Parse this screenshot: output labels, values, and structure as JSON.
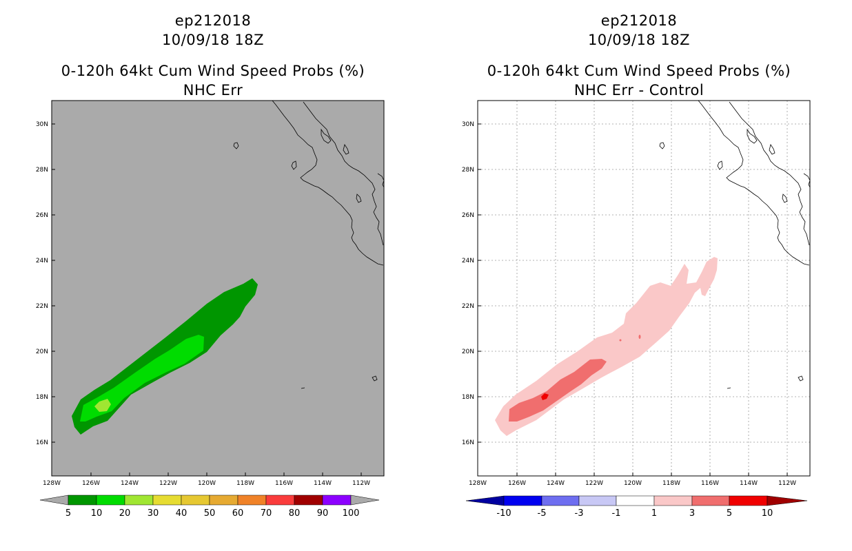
{
  "left_panel": {
    "title_storm": "ep212018",
    "title_time": "10/09/18 18Z",
    "title_product": "0-120h 64kt Cum Wind Speed Probs (%)",
    "title_sub": "NHC Err",
    "background_color": "#aaaaaa",
    "colorbar": {
      "labels": [
        "5",
        "10",
        "20",
        "30",
        "40",
        "50",
        "60",
        "70",
        "80",
        "90",
        "100"
      ],
      "colors": [
        "#009600",
        "#00dc00",
        "#a0e632",
        "#e6dc32",
        "#e6c832",
        "#e6aa32",
        "#f08228",
        "#fa3c3c",
        "#a00000",
        "#780078",
        "#8c00ff"
      ]
    }
  },
  "right_panel": {
    "title_storm": "ep212018",
    "title_time": "10/09/18 18Z",
    "title_product": "0-120h 64kt Cum Wind Speed Probs (%)",
    "title_sub": "NHC Err - Control",
    "background_color": "#ffffff",
    "colorbar": {
      "labels": [
        "-10",
        "-5",
        "-3",
        "-1",
        "1",
        "3",
        "5",
        "10"
      ],
      "colors": [
        "#0000a0",
        "#0000f0",
        "#6e6ef0",
        "#c8c8f5",
        "#ffffff",
        "#fac8c8",
        "#f06e6e",
        "#f00000",
        "#a00000"
      ]
    }
  },
  "axes": {
    "lon_labels": [
      "128W",
      "126W",
      "124W",
      "122W",
      "120W",
      "118W",
      "116W",
      "114W",
      "112W"
    ],
    "lat_labels": [
      "30N",
      "28N",
      "26N",
      "24N",
      "22N",
      "20N",
      "18N",
      "16N"
    ]
  },
  "colors": {
    "left_fill_5": "#009600",
    "left_fill_10": "#00dc00",
    "left_fill_20": "#a0e632",
    "right_fill_1": "#fac8c8",
    "right_fill_3": "#f06e6e",
    "right_fill_5": "#f00000"
  }
}
